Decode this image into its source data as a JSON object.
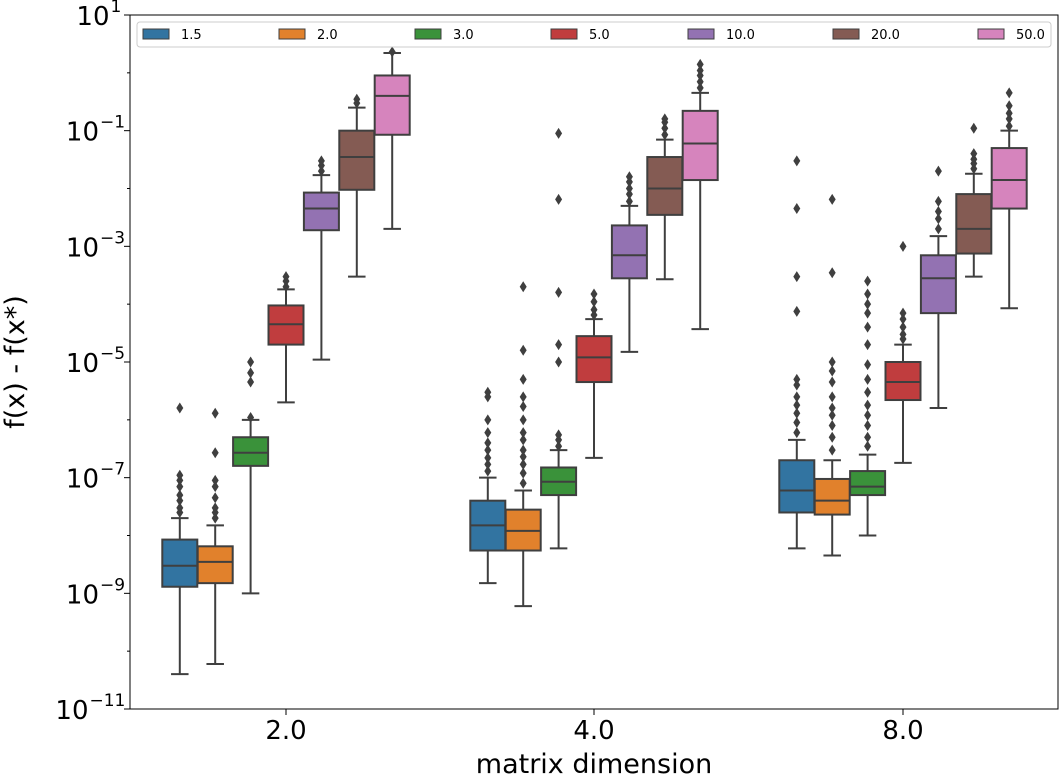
{
  "chart_data": {
    "type": "boxplot",
    "xlabel": "matrix dimension",
    "ylabel": "f(x) - f(x*)",
    "yscale": "log",
    "ylim_exp": [
      -11,
      1
    ],
    "y_ticks": [
      {
        "base": "10",
        "exp": "1"
      },
      {
        "base": "10",
        "exp": "−1"
      },
      {
        "base": "10",
        "exp": "−3"
      },
      {
        "base": "10",
        "exp": "−5"
      },
      {
        "base": "10",
        "exp": "−7"
      },
      {
        "base": "10",
        "exp": "−9"
      },
      {
        "base": "10",
        "exp": "−11"
      }
    ],
    "categories": [
      "2.0",
      "4.0",
      "8.0"
    ],
    "legend": {
      "location": "top",
      "entries": [
        "1.5",
        "2.0",
        "3.0",
        "5.0",
        "10.0",
        "20.0",
        "50.0"
      ]
    },
    "series": [
      {
        "name": "1.5",
        "color": "#3274a1",
        "boxes": [
          {
            "whislo": 4e-11,
            "q1": 1.3e-09,
            "med": 3e-09,
            "q3": 8.5e-09,
            "whishi": 2e-08,
            "fliers": [
              2.5e-08,
              3e-08,
              4e-08,
              5e-08,
              7e-08,
              9e-08,
              1.1e-07,
              1.6e-06
            ]
          },
          {
            "whislo": 1.5e-09,
            "q1": 5.5e-09,
            "med": 1.5e-08,
            "q3": 4e-08,
            "whishi": 1e-07,
            "fliers": [
              1.3e-07,
              1.7e-07,
              2.2e-07,
              3e-07,
              4e-07,
              6e-07,
              1e-06,
              2.5e-06,
              3e-06
            ]
          },
          {
            "whislo": 6e-09,
            "q1": 2.5e-08,
            "med": 6e-08,
            "q3": 2e-07,
            "whishi": 4.5e-07,
            "fliers": [
              6e-07,
              9e-07,
              1.3e-06,
              1.8e-06,
              2.5e-06,
              4e-06,
              5e-06,
              7.5e-05,
              0.0003,
              0.0045,
              0.03
            ]
          }
        ]
      },
      {
        "name": "2.0",
        "color": "#e1812c",
        "boxes": [
          {
            "whislo": 6e-11,
            "q1": 1.5e-09,
            "med": 3.5e-09,
            "q3": 6.5e-09,
            "whishi": 1.5e-08,
            "fliers": [
              2e-08,
              2.5e-08,
              3e-08,
              4.5e-08,
              7e-08,
              9e-08,
              2.7e-07,
              1.3e-06
            ]
          },
          {
            "whislo": 6e-10,
            "q1": 5.5e-09,
            "med": 1.2e-08,
            "q3": 2.8e-08,
            "whishi": 6e-08,
            "fliers": [
              8e-08,
              1.2e-07,
              1.7e-07,
              2.3e-07,
              3e-07,
              4.5e-07,
              6e-07,
              1e-06,
              1.7e-06,
              2.5e-06,
              5e-06,
              1.6e-05,
              0.0002
            ]
          },
          {
            "whislo": 4.5e-09,
            "q1": 2.3e-08,
            "med": 4e-08,
            "q3": 9.5e-08,
            "whishi": 2e-07,
            "fliers": [
              3e-07,
              5e-07,
              8e-07,
              1.2e-06,
              1.6e-06,
              2.5e-06,
              4.5e-06,
              7e-06,
              1e-05,
              0.00035,
              0.0065
            ]
          }
        ]
      },
      {
        "name": "3.0",
        "color": "#3a923a",
        "boxes": [
          {
            "whislo": 1e-09,
            "q1": 1.6e-07,
            "med": 2.7e-07,
            "q3": 5e-07,
            "whishi": 1e-06,
            "fliers": [
              1.1e-06,
              4.5e-06,
              6.5e-06,
              1e-05
            ]
          },
          {
            "whislo": 6e-09,
            "q1": 5e-08,
            "med": 8.5e-08,
            "q3": 1.5e-07,
            "whishi": 3e-07,
            "fliers": [
              3.5e-07,
              4.5e-07,
              5.5e-07,
              1e-05,
              2e-05,
              0.00016,
              0.0065,
              0.09
            ]
          },
          {
            "whislo": 1e-08,
            "q1": 5e-08,
            "med": 7e-08,
            "q3": 1.3e-07,
            "whishi": 2.5e-07,
            "fliers": [
              3.5e-07,
              5e-07,
              8e-07,
              1.2e-06,
              1.8e-06,
              3e-06,
              5e-06,
              9e-06,
              2e-05,
              4e-05,
              7e-05,
              0.0001,
              0.00015,
              0.00025
            ]
          }
        ]
      },
      {
        "name": "5.0",
        "color": "#c03d3e",
        "boxes": [
          {
            "whislo": 2e-06,
            "q1": 2e-05,
            "med": 4.5e-05,
            "q3": 9.5e-05,
            "whishi": 0.00018,
            "fliers": [
              0.0002,
              0.00025,
              0.0003
            ]
          },
          {
            "whislo": 2.2e-07,
            "q1": 4.5e-06,
            "med": 1.2e-05,
            "q3": 2.8e-05,
            "whishi": 5.5e-05,
            "fliers": [
              6.5e-05,
              8e-05,
              0.00011,
              0.00015
            ]
          },
          {
            "whislo": 1.8e-07,
            "q1": 2.2e-06,
            "med": 4.5e-06,
            "q3": 1e-05,
            "whishi": 2e-05,
            "fliers": [
              2.5e-05,
              3e-05,
              4e-05,
              5.5e-05,
              7e-05,
              0.001
            ]
          }
        ]
      },
      {
        "name": "10.0",
        "color": "#9372b2",
        "boxes": [
          {
            "whislo": 1.1e-05,
            "q1": 0.0019,
            "med": 0.0045,
            "q3": 0.0085,
            "whishi": 0.017,
            "fliers": [
              0.02,
              0.025,
              0.03
            ]
          },
          {
            "whislo": 1.5e-05,
            "q1": 0.00028,
            "med": 0.0007,
            "q3": 0.0023,
            "whishi": 0.005,
            "fliers": [
              0.006,
              0.008,
              0.01,
              0.013,
              0.016
            ]
          },
          {
            "whislo": 1.6e-06,
            "q1": 7e-05,
            "med": 0.00028,
            "q3": 0.0007,
            "whishi": 0.0015,
            "fliers": [
              0.002,
              0.003,
              0.004,
              0.006,
              0.02
            ]
          }
        ]
      },
      {
        "name": "20.0",
        "color": "#845b53",
        "boxes": [
          {
            "whislo": 0.0003,
            "q1": 0.0095,
            "med": 0.035,
            "q3": 0.1,
            "whishi": 0.25,
            "fliers": [
              0.3,
              0.35
            ]
          },
          {
            "whislo": 0.00027,
            "q1": 0.0035,
            "med": 0.01,
            "q3": 0.035,
            "whishi": 0.07,
            "fliers": [
              0.085,
              0.11,
              0.14,
              0.16
            ]
          },
          {
            "whislo": 0.0003,
            "q1": 0.00075,
            "med": 0.002,
            "q3": 0.008,
            "whishi": 0.018,
            "fliers": [
              0.022,
              0.027,
              0.032,
              0.04,
              0.11
            ]
          }
        ]
      },
      {
        "name": "50.0",
        "color": "#d684bd",
        "boxes": [
          {
            "whislo": 0.002,
            "q1": 0.085,
            "med": 0.4,
            "q3": 0.9,
            "whishi": 2.2,
            "fliers": [
              2.3
            ]
          },
          {
            "whislo": 3.7e-05,
            "q1": 0.014,
            "med": 0.06,
            "q3": 0.22,
            "whishi": 0.45,
            "fliers": [
              0.55,
              0.7,
              0.9,
              1.1,
              1.4
            ]
          },
          {
            "whislo": 8.5e-05,
            "q1": 0.0045,
            "med": 0.014,
            "q3": 0.05,
            "whishi": 0.1,
            "fliers": [
              0.12,
              0.16,
              0.2,
              0.27,
              0.45
            ]
          }
        ]
      }
    ]
  }
}
